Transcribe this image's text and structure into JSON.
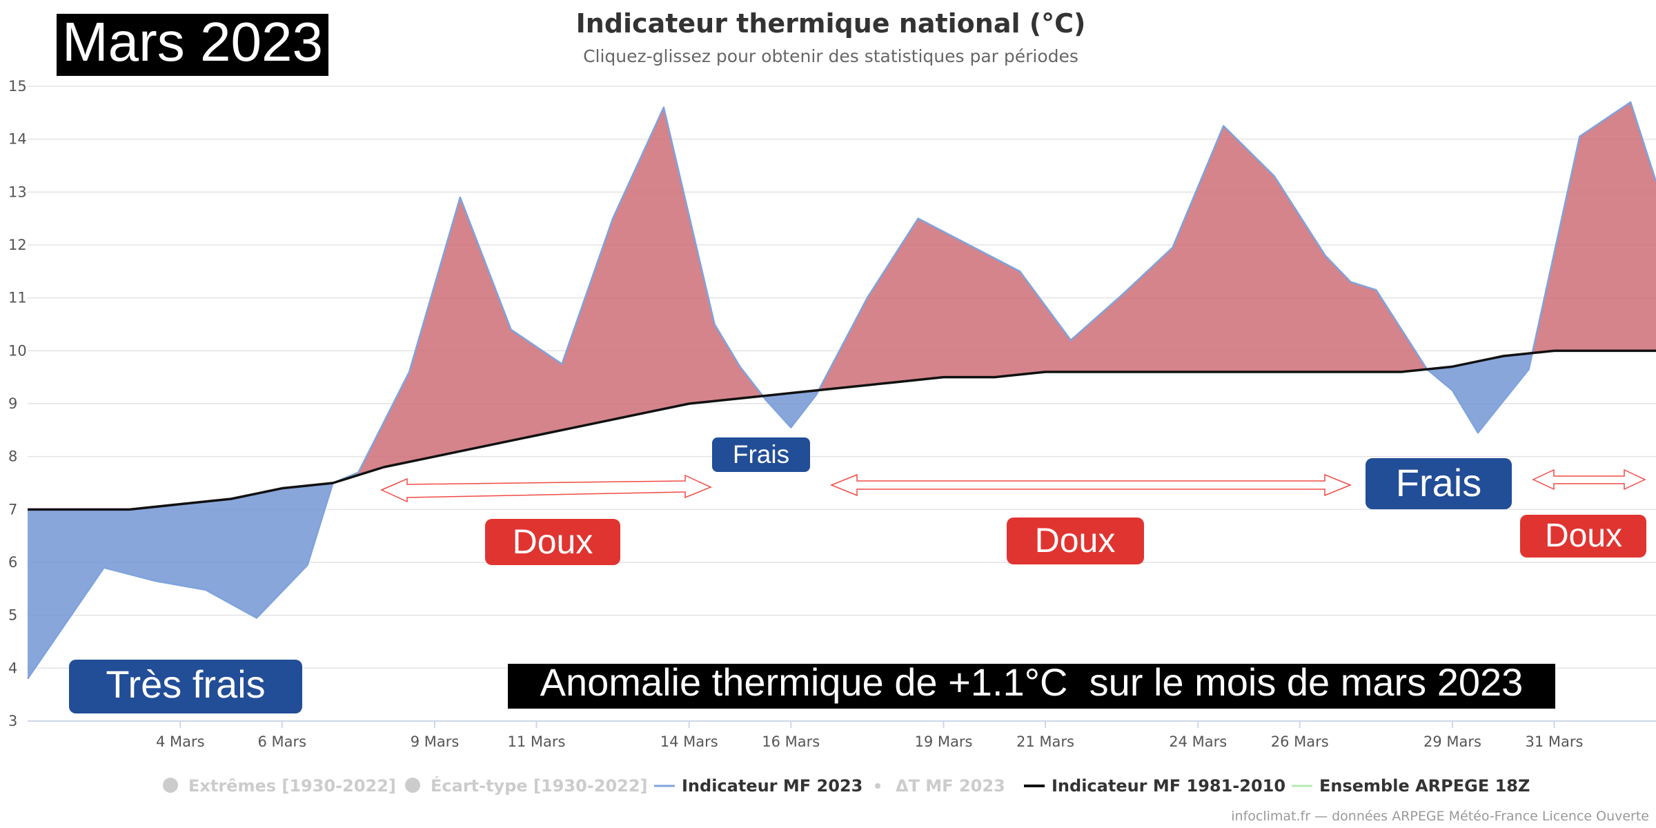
{
  "month_badge": "Mars 2023",
  "colors": {
    "warm_fill": "#cd6e76",
    "cold_fill": "#7397d4",
    "indicator_line": "#7fa3dd",
    "normal_line": "#111111",
    "warm_badge": "#e03431",
    "cold_badge": "#224d97",
    "arrow": "#f04a43",
    "grid": "#e3e3e3"
  },
  "chart_data": {
    "type": "area",
    "title": "Indicateur thermique national (°C)",
    "subtitle": "Cliquez-glissez pour obtenir des statistiques par périodes",
    "xlabel": "",
    "ylabel": "",
    "ylim": [
      3,
      15
    ],
    "yticks": [
      "3",
      "4",
      "5",
      "6",
      "7",
      "8",
      "9",
      "10",
      "11",
      "12",
      "13",
      "14",
      "15"
    ],
    "x_tick_labels": [
      "4 Mars",
      "6 Mars",
      "9 Mars",
      "11 Mars",
      "14 Mars",
      "16 Mars",
      "19 Mars",
      "21 Mars",
      "24 Mars",
      "26 Mars",
      "29 Mars",
      "31 Mars"
    ],
    "grid": true,
    "series": [
      {
        "name": "Indicateur MF 2023",
        "x": [
          1.0,
          1.5,
          2.5,
          3.5,
          4.5,
          5.5,
          6.5,
          7.0,
          7.5,
          8.5,
          9.5,
          10.5,
          11.5,
          12.5,
          13.5,
          14.5,
          15.0,
          15.5,
          16.0,
          16.5,
          17.5,
          18.5,
          19.5,
          20.5,
          21.5,
          22.5,
          23.5,
          24.5,
          25.5,
          26.5,
          27.0,
          27.5,
          28.5,
          29.0,
          29.5,
          30.5,
          31.5,
          32.5,
          33.0
        ],
        "y": [
          3.8,
          4.5,
          5.9,
          5.65,
          5.48,
          4.95,
          5.95,
          7.5,
          7.7,
          9.6,
          12.9,
          10.4,
          9.75,
          12.5,
          14.6,
          10.5,
          9.7,
          9.08,
          8.55,
          9.17,
          11.0,
          12.5,
          12.0,
          11.5,
          10.2,
          11.05,
          11.95,
          14.25,
          13.3,
          11.8,
          11.3,
          11.15,
          9.65,
          9.25,
          8.45,
          9.65,
          14.05,
          14.7,
          13.2
        ]
      },
      {
        "name": "Indicateur MF 1981-2010",
        "x": [
          1,
          2,
          3,
          4,
          5,
          6,
          7,
          8,
          9,
          10,
          11,
          12,
          13,
          14,
          15,
          16,
          17,
          18,
          19,
          20,
          21,
          22,
          23,
          24,
          25,
          26,
          27,
          28,
          29,
          30,
          31,
          32,
          33
        ],
        "y": [
          7.0,
          7.0,
          7.0,
          7.1,
          7.2,
          7.4,
          7.5,
          7.8,
          8.0,
          8.2,
          8.4,
          8.6,
          8.8,
          9.0,
          9.1,
          9.2,
          9.3,
          9.4,
          9.5,
          9.5,
          9.6,
          9.6,
          9.6,
          9.6,
          9.6,
          9.6,
          9.6,
          9.6,
          9.7,
          9.9,
          10.0,
          10.0,
          10.0
        ]
      }
    ],
    "legend_position": "bottom",
    "legend": [
      {
        "label": "Extrêmes [1930-2022]",
        "marker": "circle",
        "active": false
      },
      {
        "label": "Écart-type [1930-2022]",
        "marker": "circle",
        "active": false
      },
      {
        "label": "Indicateur MF 2023",
        "marker": "line",
        "active": true
      },
      {
        "label": "ΔT MF 2023",
        "marker": "dot",
        "active": false
      },
      {
        "label": "Indicateur MF 1981-2010",
        "marker": "line",
        "active": true
      },
      {
        "label": "Ensemble ARPEGE 18Z",
        "marker": "line",
        "active": true
      }
    ],
    "annotations": [
      "Très frais",
      "Doux",
      "Frais",
      "Doux",
      "Frais",
      "Doux",
      "Anomalie thermique de +1.1°C  sur le mois de mars 2023"
    ],
    "credits": "infoclimat.fr — données ARPEGE Météo-France Licence Ouverte"
  }
}
